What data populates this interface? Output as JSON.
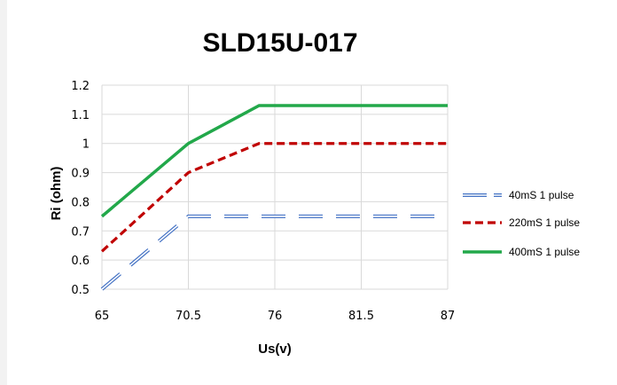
{
  "chart_data": {
    "type": "line",
    "title": "SLD15U-017",
    "xlabel": "Us(v)",
    "ylabel": "Ri (ohm)",
    "x_ticks": [
      "65",
      "70.5",
      "76",
      "81.5",
      "87"
    ],
    "y_ticks": [
      "0.5",
      "0.6",
      "0.7",
      "0.8",
      "0.9",
      "1",
      "1.1",
      "1.2"
    ],
    "xlim": [
      65,
      87
    ],
    "ylim": [
      0.5,
      1.2
    ],
    "grid": true,
    "legend": "right",
    "series": [
      {
        "name": "40mS 1 pulse",
        "color": "#4472c4",
        "style": "double-dash",
        "x": [
          65,
          70.5,
          87
        ],
        "y": [
          0.5,
          0.75,
          0.75
        ]
      },
      {
        "name": "220mS 1 pulse",
        "color": "#c00000",
        "style": "dash",
        "x": [
          65,
          70.5,
          75,
          87
        ],
        "y": [
          0.63,
          0.9,
          1.0,
          1.0
        ]
      },
      {
        "name": "400mS 1 pulse",
        "color": "#22a84a",
        "style": "solid",
        "x": [
          65,
          70.5,
          75,
          87
        ],
        "y": [
          0.75,
          1.0,
          1.13,
          1.13
        ]
      }
    ]
  }
}
